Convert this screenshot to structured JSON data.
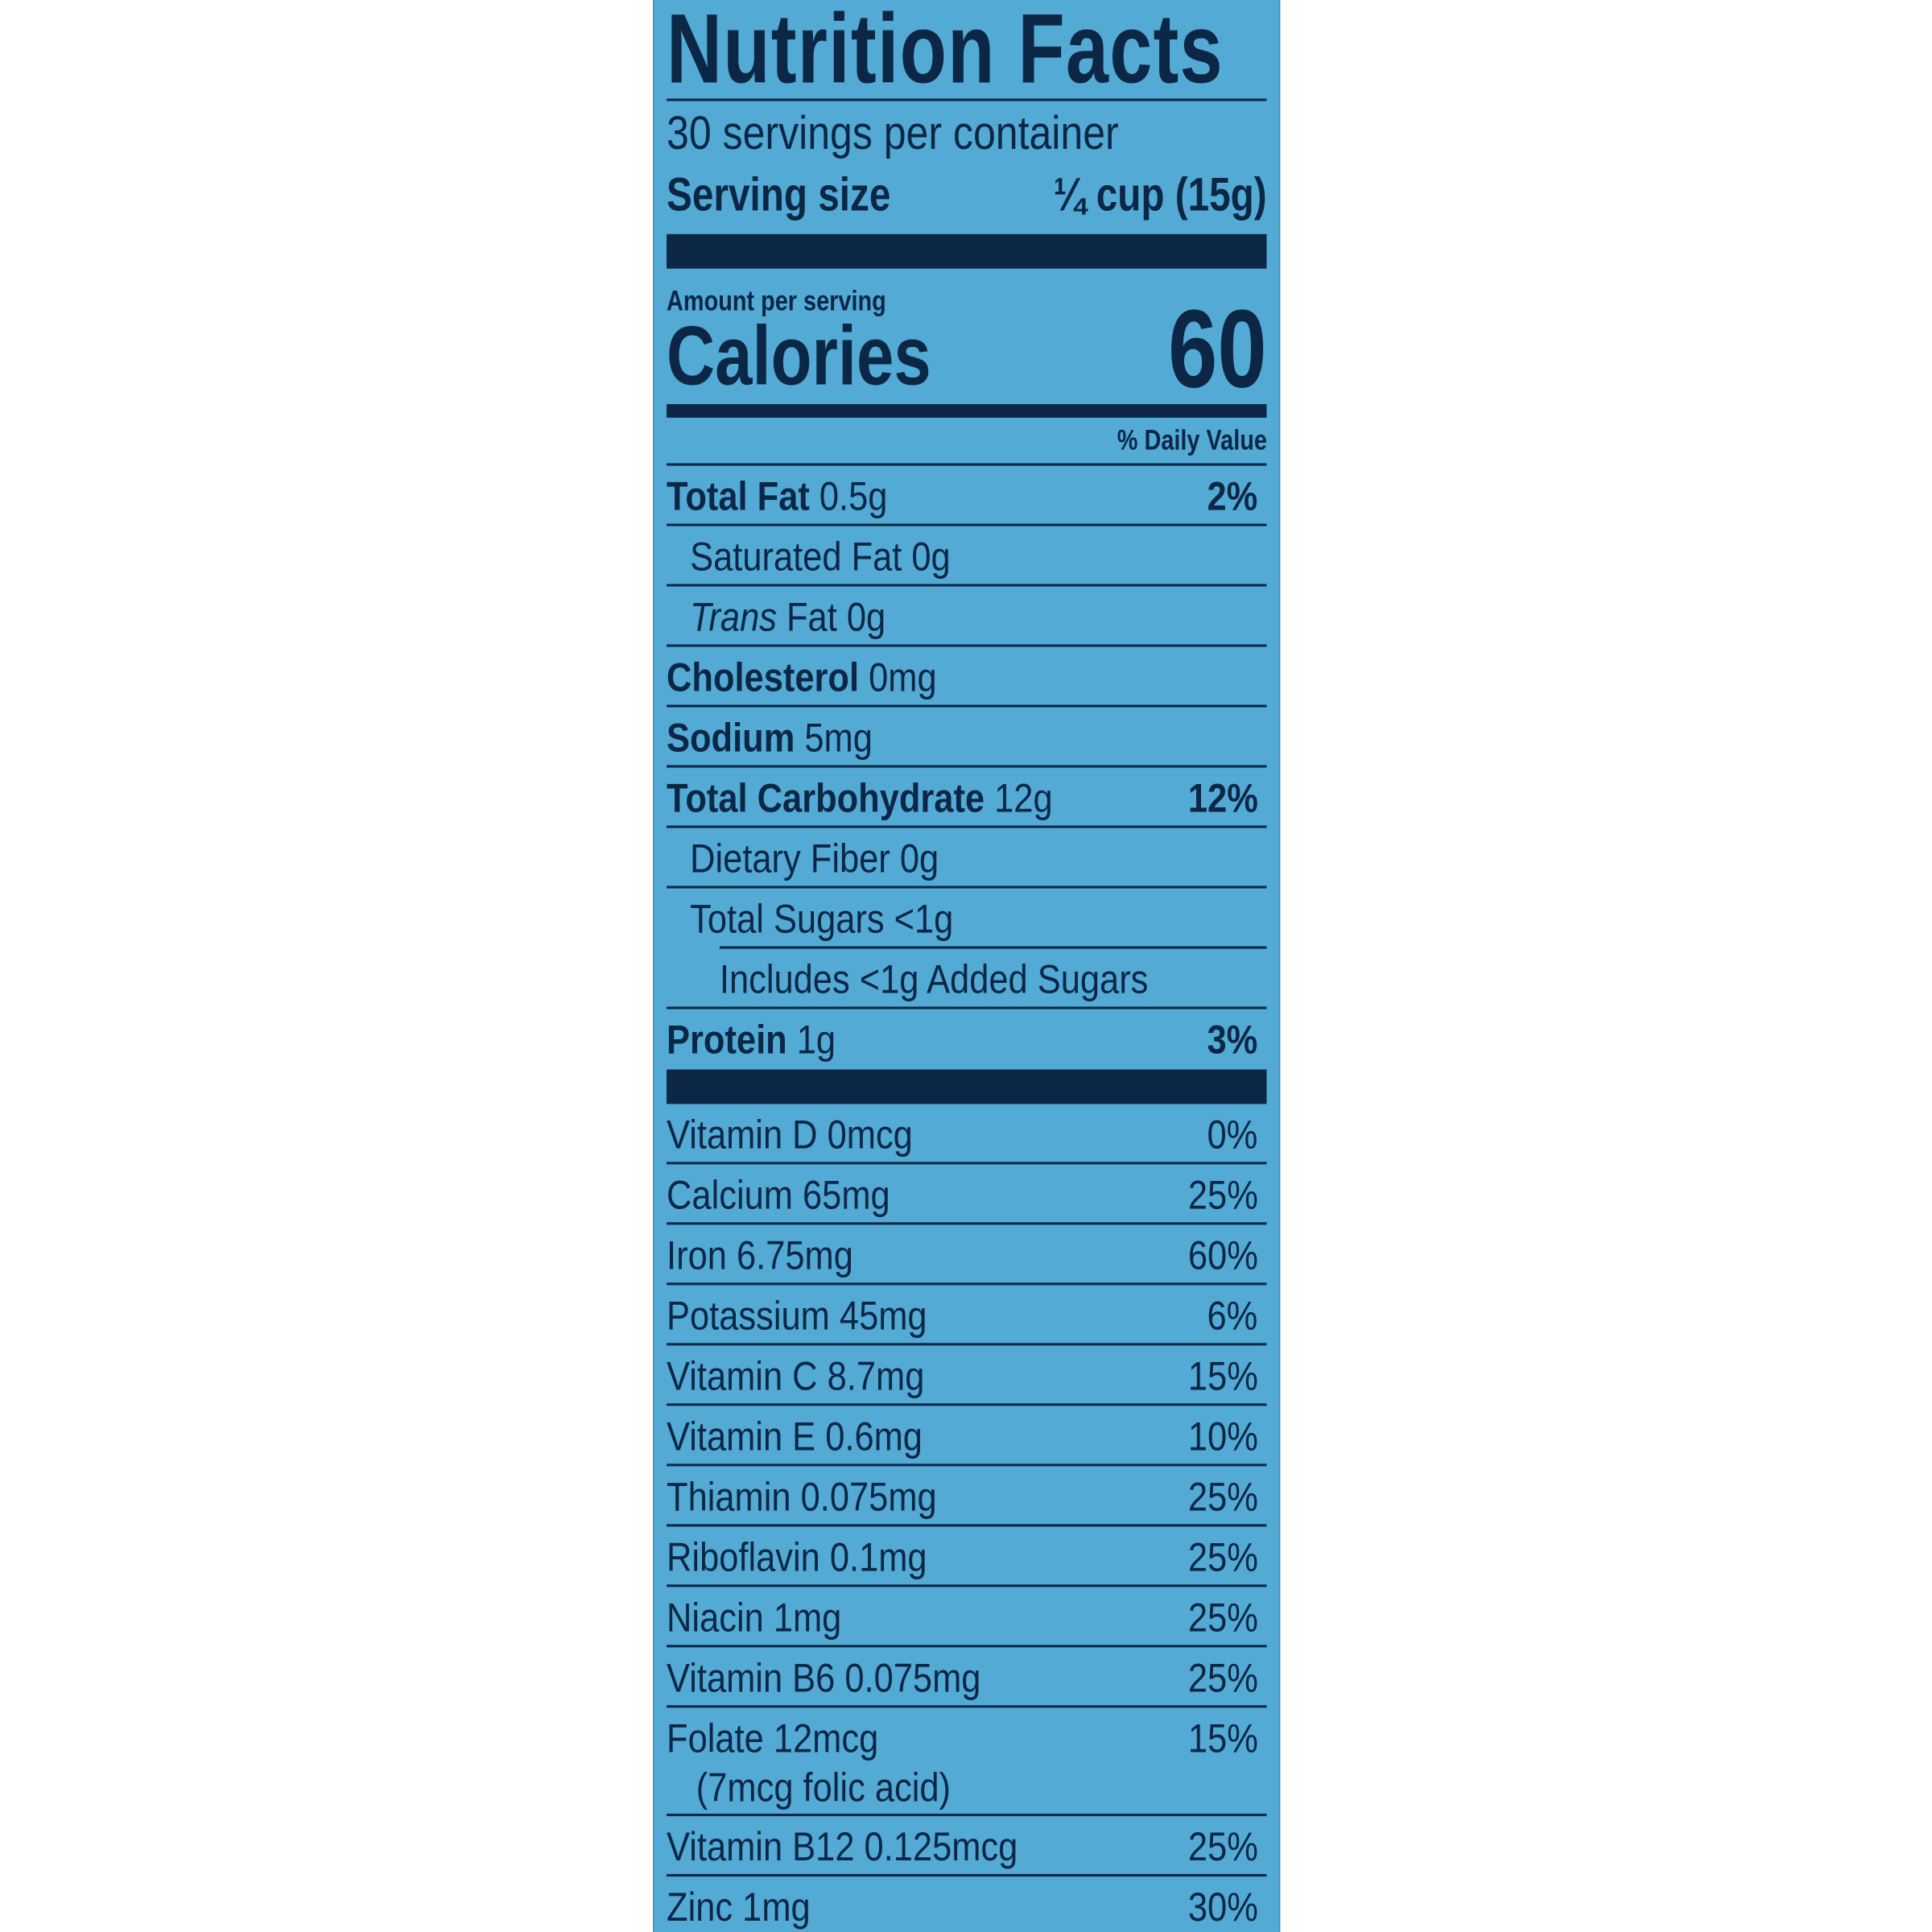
{
  "header": {
    "title": "Nutrition Facts",
    "servings": "30 servings per container",
    "serving_size_label": "Serving size",
    "serving_size": "¼ cup (15g)"
  },
  "calories": {
    "amount_label": "Amount per serving",
    "label": "Calories",
    "value": "60"
  },
  "daily_value_header": "% Daily Value",
  "nutrients": [
    {
      "name": "Total Fat",
      "amount": "0.5g",
      "dv": "2%",
      "bold": true,
      "indent": 0
    },
    {
      "name": "Saturated Fat 0g",
      "bold": false,
      "indent": 1
    },
    {
      "name_italic": "Trans",
      "name": "Fat 0g",
      "bold": false,
      "indent": 1
    },
    {
      "name": "Cholesterol",
      "amount": "0mg",
      "bold": true,
      "indent": 0
    },
    {
      "name": "Sodium",
      "amount": "5mg",
      "bold": true,
      "indent": 0
    },
    {
      "name": "Total Carbohydrate",
      "amount": "12g",
      "dv": "12%",
      "bold": true,
      "indent": 0
    },
    {
      "name": "Dietary Fiber 0g",
      "bold": false,
      "indent": 1
    },
    {
      "name": "Total Sugars <1g",
      "bold": false,
      "indent": 1
    },
    {
      "name": "Includes <1g Added Sugars",
      "bold": false,
      "indent": 2
    },
    {
      "name": "Protein",
      "amount": "1g",
      "dv": "3%",
      "bold": true,
      "indent": 0
    }
  ],
  "vitamins": [
    {
      "name": "Vitamin D 0mcg",
      "dv": "0%"
    },
    {
      "name": "Calcium 65mg",
      "dv": "25%"
    },
    {
      "name": "Iron 6.75mg",
      "dv": "60%"
    },
    {
      "name": "Potassium 45mg",
      "dv": "6%"
    },
    {
      "name": "Vitamin C 8.7mg",
      "dv": "15%"
    },
    {
      "name": "Vitamin E 0.6mg",
      "dv": "10%"
    },
    {
      "name": "Thiamin 0.075mg",
      "dv": "25%"
    },
    {
      "name": "Riboflavin 0.1mg",
      "dv": "25%"
    },
    {
      "name": "Niacin 1mg",
      "dv": "25%"
    },
    {
      "name": "Vitamin B6 0.075mg",
      "dv": "25%"
    },
    {
      "name": "Folate 12mcg",
      "note": "(7mcg folic acid)",
      "dv": "15%"
    },
    {
      "name": "Vitamin B12 0.125mcg",
      "dv": "25%"
    },
    {
      "name": "Zinc 1mg",
      "dv": "30%"
    }
  ]
}
